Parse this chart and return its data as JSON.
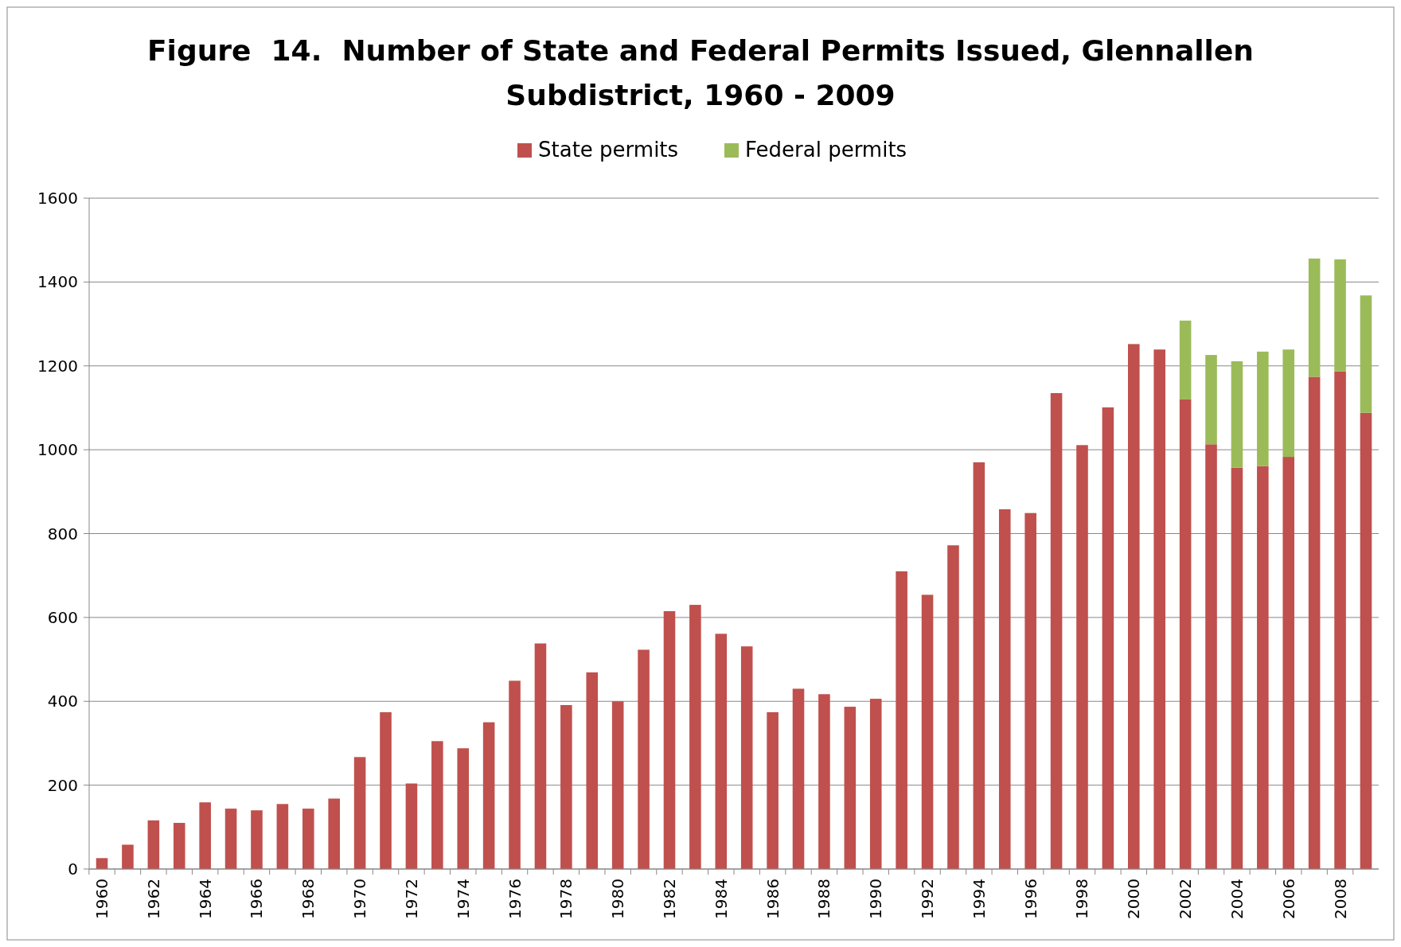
{
  "chart_data": {
    "type": "bar",
    "stacked": true,
    "title": "Figure  14.  Number of State and Federal Permits Issued, Glennallen Subdistrict, 1960 - 2009",
    "categories": [
      "1960",
      null,
      "1962",
      null,
      "1964",
      null,
      "1966",
      null,
      "1968",
      null,
      "1970",
      null,
      "1972",
      null,
      "1974",
      null,
      "1976",
      null,
      "1978",
      null,
      "1980",
      null,
      "1982",
      null,
      "1984",
      null,
      "1986",
      null,
      "1988",
      null,
      "1990",
      null,
      "1992",
      null,
      "1994",
      null,
      "1996",
      null,
      "1998",
      null,
      "2000",
      null,
      "2002",
      null,
      "2004",
      null,
      "2006",
      null,
      "2008",
      null
    ],
    "series": [
      {
        "name": "State permits",
        "color": "#c0504d",
        "values": [
          26,
          58,
          116,
          110,
          159,
          144,
          140,
          155,
          144,
          168,
          267,
          374,
          204,
          305,
          288,
          350,
          449,
          538,
          391,
          469,
          400,
          523,
          615,
          630,
          561,
          531,
          374,
          430,
          417,
          387,
          406,
          710,
          654,
          772,
          970,
          858,
          849,
          1135,
          1011,
          1101,
          1252,
          1239,
          1120,
          1013,
          957,
          961,
          983,
          1174,
          1187,
          1088
        ]
      },
      {
        "name": "Federal permits",
        "color": "#9bbb59",
        "values": [
          null,
          null,
          null,
          null,
          null,
          null,
          null,
          null,
          null,
          null,
          null,
          null,
          null,
          null,
          null,
          null,
          null,
          null,
          null,
          null,
          null,
          null,
          null,
          null,
          null,
          null,
          null,
          null,
          null,
          null,
          null,
          null,
          null,
          null,
          null,
          null,
          null,
          null,
          null,
          null,
          null,
          null,
          188,
          213,
          254,
          273,
          256,
          282,
          267,
          280
        ]
      }
    ],
    "ylim": [
      0,
      1600
    ],
    "yticks": [
      0,
      200,
      400,
      600,
      800,
      1000,
      1200,
      1400,
      1600
    ],
    "grid": "y",
    "legend": "top"
  }
}
